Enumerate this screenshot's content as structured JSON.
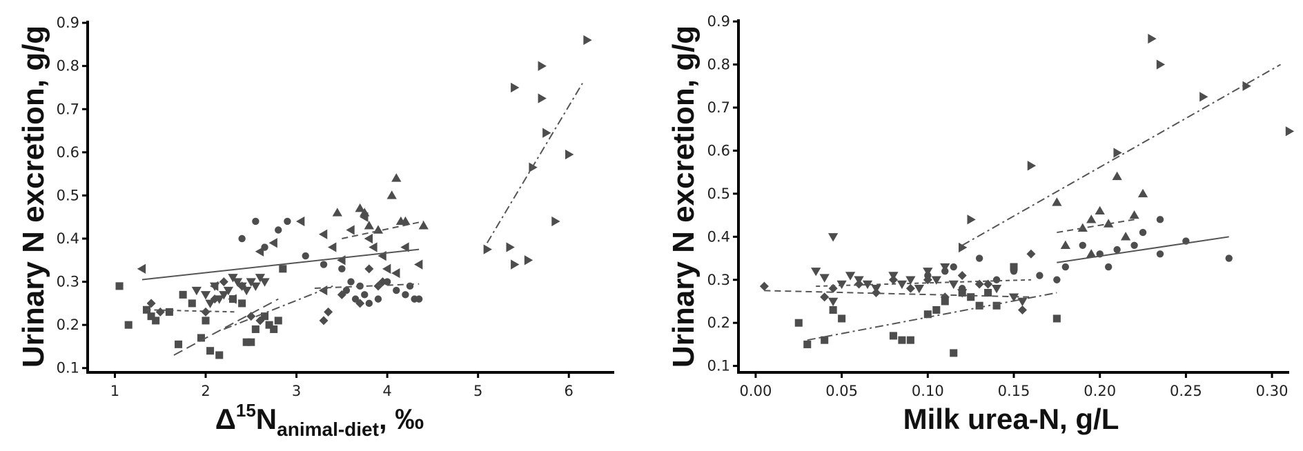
{
  "chart_data": [
    {
      "type": "scatter",
      "ylabel": "Urinary N excretion, g/g",
      "xlabel": {
        "base": "Δ",
        "sup": "15",
        "main": "N",
        "sub": "animal-diet",
        "suffix": ", ‰"
      },
      "xlim": [
        0.7,
        6.5
      ],
      "ylim": [
        0.09,
        0.905
      ],
      "xticks": [
        "1",
        "2",
        "3",
        "4",
        "5",
        "6"
      ],
      "yticks": [
        "0.1",
        "0.2",
        "0.3",
        "0.4",
        "0.5",
        "0.6",
        "0.7",
        "0.8",
        "0.9"
      ],
      "grid": false,
      "colors": {
        "points": "#4d4d4d",
        "lines": "#555555",
        "axis": "#000000"
      },
      "series": [
        {
          "marker": "square",
          "line": "longdash",
          "points": [
            [
              1.05,
              0.29
            ],
            [
              1.15,
              0.2
            ],
            [
              1.35,
              0.235
            ],
            [
              1.4,
              0.22
            ],
            [
              1.45,
              0.21
            ],
            [
              1.6,
              0.23
            ],
            [
              1.7,
              0.155
            ],
            [
              1.75,
              0.27
            ],
            [
              1.85,
              0.25
            ],
            [
              1.95,
              0.17
            ],
            [
              2.0,
              0.21
            ],
            [
              2.05,
              0.14
            ],
            [
              2.15,
              0.13
            ],
            [
              2.3,
              0.26
            ],
            [
              2.4,
              0.25
            ],
            [
              2.45,
              0.16
            ],
            [
              2.5,
              0.16
            ],
            [
              2.55,
              0.19
            ],
            [
              2.65,
              0.22
            ],
            [
              2.7,
              0.2
            ],
            [
              2.75,
              0.19
            ],
            [
              2.8,
              0.21
            ],
            [
              2.85,
              0.33
            ]
          ],
          "fit": [
            [
              1.65,
              0.13
            ],
            [
              2.8,
              0.26
            ]
          ]
        },
        {
          "marker": "diamond",
          "line": "dashdot",
          "points": [
            [
              1.4,
              0.25
            ],
            [
              1.5,
              0.23
            ],
            [
              2.0,
              0.23
            ],
            [
              2.1,
              0.26
            ],
            [
              2.2,
              0.3
            ],
            [
              2.4,
              0.29
            ],
            [
              2.5,
              0.22
            ],
            [
              2.6,
              0.21
            ],
            [
              3.3,
              0.21
            ],
            [
              3.35,
              0.23
            ],
            [
              3.5,
              0.27
            ],
            [
              3.7,
              0.25
            ],
            [
              3.8,
              0.33
            ],
            [
              3.9,
              0.29
            ],
            [
              3.95,
              0.3
            ]
          ],
          "fit": [
            [
              2.2,
              0.19
            ],
            [
              3.4,
              0.29
            ]
          ]
        },
        {
          "marker": "circle",
          "line": "dashed",
          "points": [
            [
              2.4,
              0.4
            ],
            [
              2.55,
              0.44
            ],
            [
              2.65,
              0.38
            ],
            [
              2.8,
              0.42
            ],
            [
              2.9,
              0.44
            ],
            [
              3.1,
              0.36
            ],
            [
              3.3,
              0.34
            ],
            [
              3.5,
              0.33
            ],
            [
              3.55,
              0.28
            ],
            [
              3.6,
              0.3
            ],
            [
              3.65,
              0.26
            ],
            [
              3.7,
              0.29
            ],
            [
              3.75,
              0.27
            ],
            [
              3.8,
              0.25
            ],
            [
              3.9,
              0.26
            ],
            [
              4.0,
              0.3
            ],
            [
              4.1,
              0.28
            ],
            [
              4.2,
              0.27
            ],
            [
              4.3,
              0.26
            ],
            [
              4.35,
              0.26
            ],
            [
              4.25,
              0.29
            ]
          ],
          "fit": [
            [
              3.2,
              0.285
            ],
            [
              4.35,
              0.295
            ]
          ]
        },
        {
          "marker": "triangle-down",
          "line": "short-dash",
          "points": [
            [
              1.9,
              0.28
            ],
            [
              2.0,
              0.27
            ],
            [
              2.05,
              0.25
            ],
            [
              2.1,
              0.29
            ],
            [
              2.15,
              0.26
            ],
            [
              2.2,
              0.27
            ],
            [
              2.25,
              0.28
            ],
            [
              2.3,
              0.31
            ],
            [
              2.35,
              0.3
            ],
            [
              2.4,
              0.29
            ],
            [
              2.45,
              0.28
            ],
            [
              2.5,
              0.3
            ],
            [
              2.55,
              0.29
            ],
            [
              2.6,
              0.31
            ],
            [
              2.65,
              0.3
            ]
          ],
          "fit": [
            [
              1.35,
              0.235
            ],
            [
              2.35,
              0.23
            ]
          ]
        },
        {
          "marker": "triangle-up",
          "line": "dashed",
          "points": [
            [
              3.45,
              0.46
            ],
            [
              3.7,
              0.47
            ],
            [
              3.75,
              0.46
            ],
            [
              3.8,
              0.43
            ],
            [
              3.9,
              0.42
            ],
            [
              4.05,
              0.5
            ],
            [
              4.1,
              0.54
            ],
            [
              4.15,
              0.44
            ],
            [
              4.2,
              0.44
            ],
            [
              4.4,
              0.43
            ]
          ],
          "fit": [
            [
              3.5,
              0.4
            ],
            [
              4.4,
              0.44
            ]
          ]
        },
        {
          "marker": "triangle-left",
          "line": "solid",
          "points": [
            [
              1.3,
              0.33
            ],
            [
              2.1,
              0.29
            ],
            [
              2.3,
              0.26
            ],
            [
              2.6,
              0.37
            ],
            [
              2.75,
              0.39
            ],
            [
              3.05,
              0.44
            ],
            [
              3.3,
              0.41
            ],
            [
              3.4,
              0.38
            ],
            [
              3.5,
              0.35
            ],
            [
              3.6,
              0.42
            ],
            [
              3.75,
              0.45
            ],
            [
              3.8,
              0.4
            ],
            [
              3.85,
              0.38
            ],
            [
              3.95,
              0.36
            ],
            [
              4.0,
              0.33
            ],
            [
              4.1,
              0.32
            ],
            [
              4.2,
              0.38
            ],
            [
              4.35,
              0.34
            ],
            [
              3.3,
              0.28
            ]
          ],
          "fit": [
            [
              1.3,
              0.305
            ],
            [
              4.35,
              0.375
            ]
          ]
        },
        {
          "marker": "triangle-right",
          "line": "dashdot",
          "points": [
            [
              5.1,
              0.375
            ],
            [
              5.35,
              0.38
            ],
            [
              5.4,
              0.34
            ],
            [
              5.4,
              0.75
            ],
            [
              5.55,
              0.35
            ],
            [
              5.6,
              0.565
            ],
            [
              5.7,
              0.8
            ],
            [
              5.7,
              0.725
            ],
            [
              5.75,
              0.645
            ],
            [
              5.85,
              0.44
            ],
            [
              6.0,
              0.595
            ],
            [
              6.2,
              0.86
            ]
          ],
          "fit": [
            [
              5.1,
              0.39
            ],
            [
              6.15,
              0.76
            ]
          ]
        }
      ]
    },
    {
      "type": "scatter",
      "ylabel": "Urinary N excretion, g/g",
      "xlabel": "Milk urea-N, g/L",
      "xlim": [
        -0.01,
        0.31
      ],
      "ylim": [
        0.085,
        0.905
      ],
      "xticks": [
        "0.00",
        "0.05",
        "0.10",
        "0.15",
        "0.20",
        "0.25",
        "0.30"
      ],
      "yticks": [
        "0.1",
        "0.2",
        "0.3",
        "0.4",
        "0.5",
        "0.6",
        "0.7",
        "0.8",
        "0.9"
      ],
      "grid": false,
      "colors": {
        "points": "#4d4d4d",
        "lines": "#555555",
        "axis": "#000000"
      },
      "series": [
        {
          "marker": "square",
          "line": "dashdot",
          "points": [
            [
              0.025,
              0.2
            ],
            [
              0.03,
              0.15
            ],
            [
              0.04,
              0.16
            ],
            [
              0.045,
              0.23
            ],
            [
              0.05,
              0.21
            ],
            [
              0.08,
              0.17
            ],
            [
              0.085,
              0.16
            ],
            [
              0.09,
              0.16
            ],
            [
              0.1,
              0.22
            ],
            [
              0.105,
              0.23
            ],
            [
              0.11,
              0.25
            ],
            [
              0.115,
              0.13
            ],
            [
              0.12,
              0.27
            ],
            [
              0.125,
              0.26
            ],
            [
              0.13,
              0.24
            ],
            [
              0.135,
              0.27
            ],
            [
              0.15,
              0.33
            ],
            [
              0.175,
              0.21
            ],
            [
              0.14,
              0.24
            ]
          ],
          "fit": [
            [
              0.03,
              0.16
            ],
            [
              0.175,
              0.27
            ]
          ]
        },
        {
          "marker": "diamond",
          "line": "dashed",
          "points": [
            [
              0.005,
              0.285
            ],
            [
              0.04,
              0.26
            ],
            [
              0.045,
              0.28
            ],
            [
              0.06,
              0.29
            ],
            [
              0.07,
              0.27
            ],
            [
              0.08,
              0.3
            ],
            [
              0.09,
              0.28
            ],
            [
              0.1,
              0.3
            ],
            [
              0.11,
              0.26
            ],
            [
              0.12,
              0.31
            ],
            [
              0.13,
              0.29
            ],
            [
              0.135,
              0.29
            ],
            [
              0.155,
              0.23
            ],
            [
              0.16,
              0.36
            ]
          ],
          "fit": [
            [
              0.005,
              0.275
            ],
            [
              0.16,
              0.26
            ]
          ]
        },
        {
          "marker": "circle",
          "line": "solid",
          "points": [
            [
              0.1,
              0.31
            ],
            [
              0.11,
              0.32
            ],
            [
              0.115,
              0.33
            ],
            [
              0.12,
              0.28
            ],
            [
              0.13,
              0.35
            ],
            [
              0.14,
              0.3
            ],
            [
              0.15,
              0.32
            ],
            [
              0.165,
              0.31
            ],
            [
              0.175,
              0.3
            ],
            [
              0.18,
              0.33
            ],
            [
              0.19,
              0.38
            ],
            [
              0.2,
              0.36
            ],
            [
              0.205,
              0.33
            ],
            [
              0.21,
              0.37
            ],
            [
              0.22,
              0.38
            ],
            [
              0.225,
              0.41
            ],
            [
              0.235,
              0.44
            ],
            [
              0.25,
              0.39
            ],
            [
              0.235,
              0.36
            ],
            [
              0.275,
              0.35
            ]
          ],
          "fit": [
            [
              0.175,
              0.34
            ],
            [
              0.275,
              0.4
            ]
          ]
        },
        {
          "marker": "triangle-down",
          "line": "short-dash",
          "points": [
            [
              0.035,
              0.32
            ],
            [
              0.04,
              0.305
            ],
            [
              0.045,
              0.4
            ],
            [
              0.05,
              0.29
            ],
            [
              0.055,
              0.31
            ],
            [
              0.06,
              0.3
            ],
            [
              0.065,
              0.29
            ],
            [
              0.07,
              0.28
            ],
            [
              0.08,
              0.31
            ],
            [
              0.085,
              0.29
            ],
            [
              0.09,
              0.3
            ],
            [
              0.095,
              0.28
            ],
            [
              0.1,
              0.32
            ],
            [
              0.105,
              0.3
            ],
            [
              0.11,
              0.33
            ],
            [
              0.115,
              0.29
            ],
            [
              0.12,
              0.27
            ],
            [
              0.14,
              0.28
            ],
            [
              0.15,
              0.26
            ],
            [
              0.155,
              0.25
            ],
            [
              0.045,
              0.25
            ]
          ],
          "fit": [
            [
              0.035,
              0.285
            ],
            [
              0.16,
              0.3
            ]
          ]
        },
        {
          "marker": "triangle-up",
          "line": "dashed",
          "points": [
            [
              0.175,
              0.48
            ],
            [
              0.18,
              0.38
            ],
            [
              0.19,
              0.42
            ],
            [
              0.195,
              0.44
            ],
            [
              0.2,
              0.46
            ],
            [
              0.205,
              0.43
            ],
            [
              0.21,
              0.54
            ],
            [
              0.22,
              0.45
            ],
            [
              0.225,
              0.5
            ],
            [
              0.215,
              0.4
            ],
            [
              0.195,
              0.36
            ]
          ],
          "fit": [
            [
              0.175,
              0.41
            ],
            [
              0.22,
              0.44
            ]
          ]
        },
        {
          "marker": "triangle-right",
          "line": "dashdot",
          "points": [
            [
              0.12,
              0.375
            ],
            [
              0.125,
              0.44
            ],
            [
              0.16,
              0.565
            ],
            [
              0.21,
              0.595
            ],
            [
              0.23,
              0.86
            ],
            [
              0.235,
              0.8
            ],
            [
              0.26,
              0.725
            ],
            [
              0.285,
              0.75
            ],
            [
              0.31,
              0.645
            ]
          ],
          "fit": [
            [
              0.12,
              0.38
            ],
            [
              0.305,
              0.8
            ]
          ]
        }
      ]
    }
  ]
}
